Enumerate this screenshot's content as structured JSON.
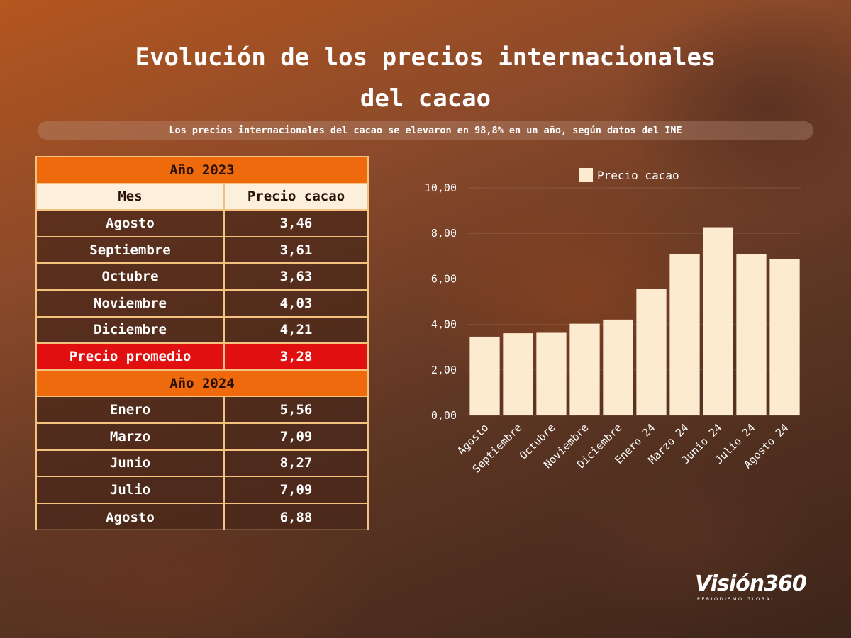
{
  "header": {
    "title_line1": "Evolución de los precios internacionales",
    "title_line2": "del cacao",
    "subtitle": "Los precios internacionales del cacao se elevaron en 98,8% en un año, según datos del INE"
  },
  "table": {
    "year_2023": "Año 2023",
    "col_month": "Mes",
    "col_price": "Precio cacao",
    "rows_2023": [
      {
        "month": "Agosto",
        "price": "3,46"
      },
      {
        "month": "Septiembre",
        "price": "3,61"
      },
      {
        "month": "Octubre",
        "price": "3,63"
      },
      {
        "month": "Noviembre",
        "price": "4,03"
      },
      {
        "month": "Diciembre",
        "price": "4,21"
      }
    ],
    "average_label": "Precio promedio",
    "average_value": "3,28",
    "year_2024": "Año 2024",
    "rows_2024": [
      {
        "month": "Enero",
        "price": "5,56"
      },
      {
        "month": "Marzo",
        "price": "7,09"
      },
      {
        "month": "Junio",
        "price": "8,27"
      },
      {
        "month": "Julio",
        "price": "7,09"
      },
      {
        "month": "Agosto",
        "price": "6,88"
      }
    ]
  },
  "chart_data": {
    "type": "bar",
    "title": "",
    "xlabel": "",
    "ylabel": "",
    "categories": [
      "Agosto",
      "Septiembre",
      "Octubre",
      "Noviembre",
      "Diciembre",
      "Enero 24",
      "Marzo 24",
      "Junio 24",
      "Julio 24",
      "Agosto 24"
    ],
    "series": [
      {
        "name": "Precio cacao",
        "values": [
          3.46,
          3.61,
          3.63,
          4.03,
          4.21,
          5.56,
          7.09,
          8.27,
          7.09,
          6.88
        ]
      }
    ],
    "ylim": [
      0,
      10
    ],
    "yticks": [
      "0,00",
      "2,00",
      "4,00",
      "6,00",
      "8,00",
      "10,00"
    ],
    "ytick_values": [
      0,
      2,
      4,
      6,
      8,
      10
    ],
    "grid": true,
    "legend_position": "top-center",
    "bar_color": "#fdebd0"
  },
  "logo": {
    "name": "Visión360",
    "tagline": "PERIODISMO GLOBAL"
  }
}
